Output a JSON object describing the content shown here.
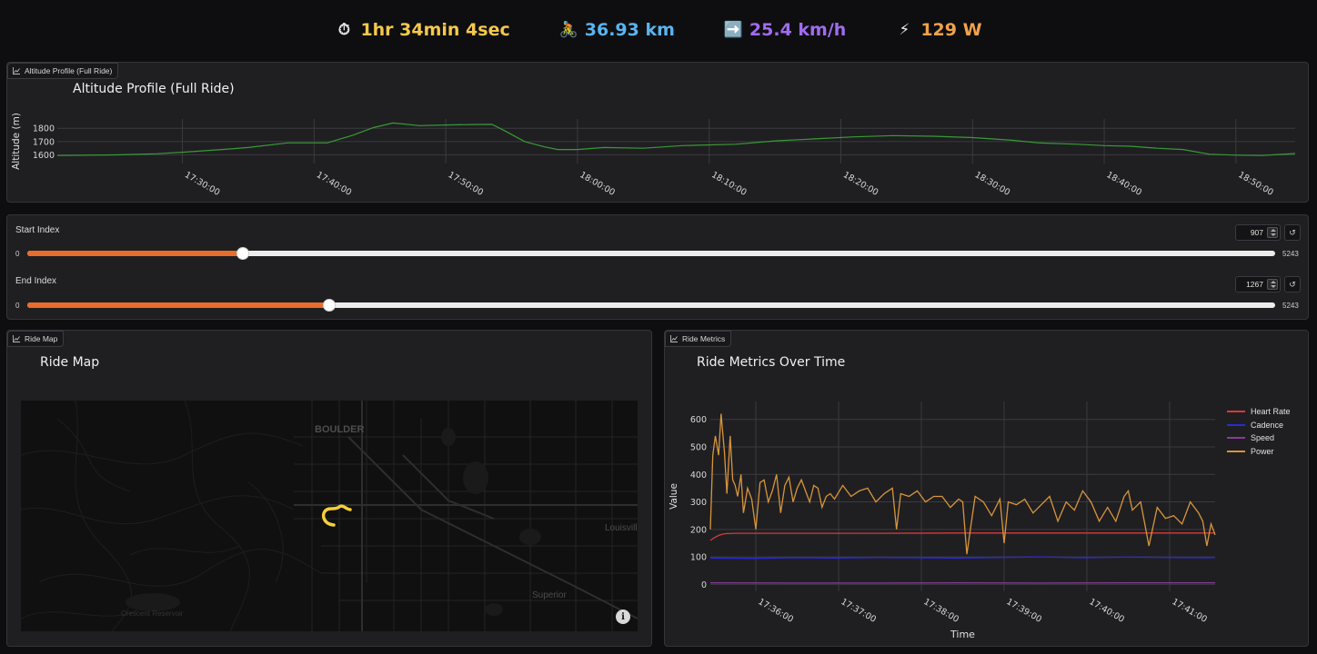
{
  "stats": [
    {
      "icon": "stopwatch-icon",
      "glyph": "⏱",
      "value": "1hr 34min 4sec",
      "color": "#f5c84c"
    },
    {
      "icon": "cyclist-icon",
      "glyph": "🚴",
      "value": "36.93 km",
      "color": "#5ab4f0"
    },
    {
      "icon": "right-arrow-icon",
      "glyph": "➡️",
      "value": "25.4 km/h",
      "color": "#a06cf0"
    },
    {
      "icon": "lightning-icon",
      "glyph": "⚡",
      "value": "129 W",
      "color": "#f0a24a"
    }
  ],
  "altitude_panel": {
    "tag": "Altitude Profile (Full Ride)",
    "title": "Altitude Profile (Full Ride)"
  },
  "sliders": {
    "start": {
      "label": "Start Index",
      "value": "907",
      "min": "0",
      "max": "5243",
      "fraction": 0.173
    },
    "end": {
      "label": "End Index",
      "value": "1267",
      "min": "0",
      "max": "5243",
      "fraction": 0.2417
    },
    "reset_glyph": "↺"
  },
  "map_panel": {
    "tag": "Ride Map",
    "title": "Ride Map",
    "labels": {
      "boulder": "BOULDER",
      "louisville": "Louisvill",
      "superior": "Superior",
      "reservoir": "Crescent Reservoir"
    },
    "info_glyph": "i",
    "route_color": "#f5cf3a"
  },
  "metrics_panel": {
    "tag": "Ride Metrics",
    "title": "Ride Metrics Over Time"
  },
  "chart_data": [
    {
      "type": "line",
      "title": "Altitude Profile (Full Ride)",
      "xlabel": "",
      "ylabel": "Altitude (m)",
      "x_ticks": [
        "17:30:00",
        "17:40:00",
        "17:50:00",
        "18:00:00",
        "18:10:00",
        "18:20:00",
        "18:30:00",
        "18:40:00",
        "18:50:00"
      ],
      "y_ticks": [
        1600,
        1700,
        1800
      ],
      "xlim_minutes_from_1730": [
        -9.5,
        84.5
      ],
      "ylim": [
        1535,
        1870
      ],
      "grid": true,
      "color": "#3a9a36",
      "series": [
        {
          "name": "Altitude",
          "x": [
            -9.5,
            -5,
            -2,
            0,
            3,
            5,
            8,
            11,
            13,
            14.5,
            16,
            18,
            20,
            22,
            23.5,
            24.5,
            26,
            27.5,
            28.5,
            30,
            32,
            35,
            38,
            42,
            45,
            48,
            51,
            54,
            57,
            60,
            63,
            65,
            68,
            70,
            72,
            74,
            76,
            78,
            80,
            82,
            84.5
          ],
          "y": [
            1595,
            1600,
            1608,
            1620,
            1640,
            1655,
            1690,
            1690,
            1750,
            1805,
            1840,
            1820,
            1825,
            1828,
            1830,
            1780,
            1700,
            1660,
            1640,
            1640,
            1655,
            1650,
            1670,
            1680,
            1705,
            1720,
            1735,
            1745,
            1740,
            1730,
            1710,
            1690,
            1680,
            1670,
            1665,
            1650,
            1640,
            1605,
            1598,
            1595,
            1610
          ]
        }
      ]
    },
    {
      "type": "line",
      "title": "Ride Metrics Over Time",
      "xlabel": "Time",
      "ylabel": "Value",
      "x_ticks": [
        "17:36:00",
        "17:37:00",
        "17:38:00",
        "17:39:00",
        "17:40:00",
        "17:41:00"
      ],
      "y_ticks": [
        0,
        100,
        200,
        300,
        400,
        500,
        600
      ],
      "ylim": [
        -25,
        665
      ],
      "legend": "top-right",
      "grid": true,
      "series": [
        {
          "name": "Heart Rate",
          "color": "#d83a3a",
          "x": [
            0,
            0.05,
            0.1,
            0.15,
            0.2,
            0.25,
            0.3,
            0.5,
            1,
            2,
            3,
            4,
            5,
            6,
            6.1
          ],
          "y": [
            160,
            170,
            178,
            183,
            185,
            185,
            186,
            186,
            186,
            186,
            187,
            187,
            187,
            187,
            187
          ]
        },
        {
          "name": "Cadence",
          "color": "#2a2ad8",
          "x": [
            0,
            0.5,
            1,
            1.5,
            2,
            2.5,
            3,
            3.5,
            4,
            4.5,
            5,
            5.5,
            6,
            6.1
          ],
          "y": [
            96,
            95,
            97,
            96,
            98,
            97,
            96,
            98,
            100,
            97,
            99,
            98,
            97,
            98
          ]
        },
        {
          "name": "Speed",
          "color": "#8a3a9a",
          "x": [
            0,
            1,
            2,
            3,
            4,
            5,
            6,
            6.1
          ],
          "y": [
            6,
            5,
            5,
            6,
            5,
            6,
            6,
            6
          ]
        },
        {
          "name": "Power",
          "color": "#d8953a",
          "x": [
            0,
            0.03,
            0.06,
            0.1,
            0.13,
            0.17,
            0.2,
            0.24,
            0.27,
            0.3,
            0.33,
            0.37,
            0.4,
            0.45,
            0.5,
            0.55,
            0.6,
            0.65,
            0.7,
            0.75,
            0.8,
            0.85,
            0.9,
            0.95,
            1.0,
            1.05,
            1.1,
            1.15,
            1.2,
            1.25,
            1.3,
            1.35,
            1.4,
            1.45,
            1.5,
            1.6,
            1.7,
            1.8,
            1.9,
            2.0,
            2.1,
            2.2,
            2.25,
            2.3,
            2.4,
            2.5,
            2.6,
            2.7,
            2.8,
            2.9,
            3.0,
            3.05,
            3.1,
            3.2,
            3.3,
            3.4,
            3.5,
            3.55,
            3.6,
            3.7,
            3.8,
            3.9,
            4.0,
            4.1,
            4.2,
            4.3,
            4.4,
            4.5,
            4.6,
            4.7,
            4.8,
            4.9,
            5.0,
            5.05,
            5.1,
            5.2,
            5.3,
            5.4,
            5.5,
            5.6,
            5.7,
            5.8,
            5.9,
            5.95,
            6.0,
            6.05,
            6.1
          ],
          "y": [
            200,
            470,
            540,
            470,
            620,
            480,
            330,
            540,
            380,
            360,
            320,
            400,
            260,
            350,
            310,
            200,
            370,
            380,
            300,
            340,
            400,
            260,
            360,
            390,
            300,
            350,
            380,
            340,
            300,
            360,
            350,
            280,
            320,
            330,
            310,
            360,
            320,
            340,
            350,
            300,
            330,
            350,
            200,
            330,
            320,
            340,
            300,
            320,
            320,
            280,
            310,
            300,
            110,
            320,
            300,
            250,
            310,
            150,
            300,
            290,
            310,
            260,
            290,
            320,
            230,
            300,
            270,
            340,
            300,
            230,
            280,
            230,
            320,
            340,
            270,
            300,
            140,
            280,
            240,
            250,
            220,
            300,
            260,
            230,
            140,
            220,
            180
          ]
        }
      ]
    }
  ]
}
